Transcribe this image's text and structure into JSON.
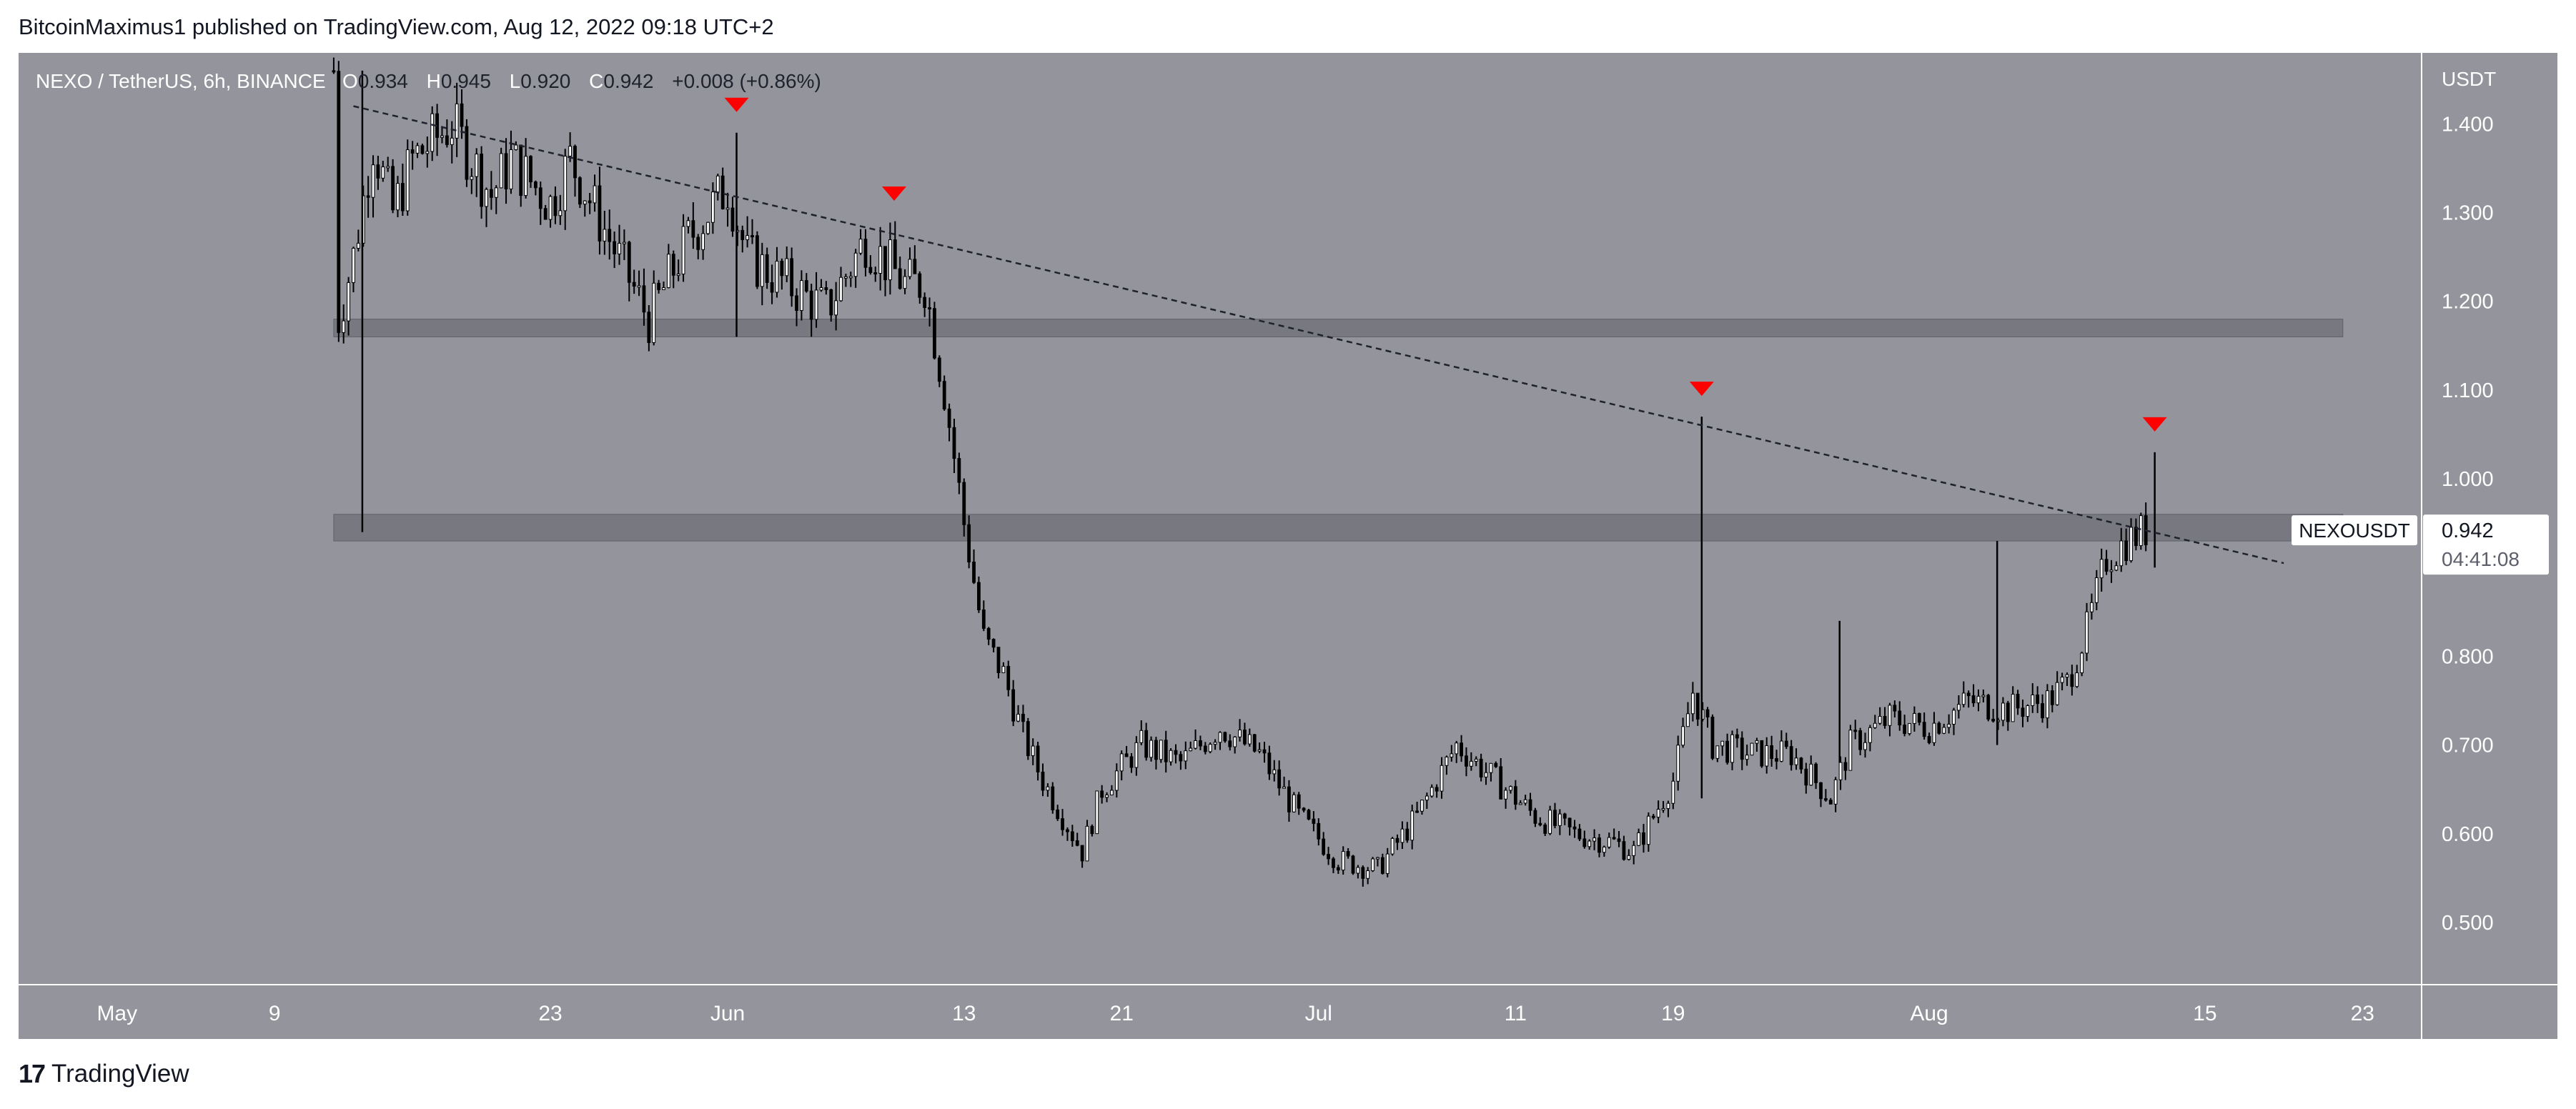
{
  "header": {
    "text": "BitcoinMaximus1 published on TradingView.com, Aug 12, 2022 09:18 UTC+2"
  },
  "legend": {
    "symbol": "NEXO / TetherUS, 6h, BINANCE",
    "o_label": "O",
    "o_value": "0.934",
    "h_label": "H",
    "h_value": "0.945",
    "l_label": "L",
    "l_value": "0.920",
    "c_label": "C",
    "c_value": "0.942",
    "change": "+0.008 (+0.86%)"
  },
  "price_axis": {
    "unit": "USDT"
  },
  "price_tag": {
    "symbol": "NEXOUSDT",
    "price": "0.942",
    "countdown": "04:41:08"
  },
  "footer": {
    "logo": "17",
    "brand": "TradingView"
  },
  "colors": {
    "background": "#93949c",
    "candle_up": "#ffffff",
    "candle_down": "#000000",
    "marker": "#ff0000",
    "zone": "#6f7077",
    "axis_text": "#ffffff"
  },
  "chart_data": {
    "type": "candlestick",
    "title": "NEXO / TetherUS, 6h, BINANCE",
    "ylabel": "USDT",
    "ylim": [
      0.43,
      1.48
    ],
    "y_ticks": [
      0.5,
      0.6,
      0.7,
      0.8,
      1.0,
      1.1,
      1.2,
      1.3,
      1.4
    ],
    "y_tick_labels": [
      "0.500",
      "0.600",
      "0.700",
      "0.800",
      "1.000",
      "1.100",
      "1.200",
      "1.300",
      "1.400"
    ],
    "x_range": [
      "2022-04-26",
      "2022-08-26"
    ],
    "x_ticks": [
      {
        "date": "2022-05-01",
        "label": "May"
      },
      {
        "date": "2022-05-09",
        "label": "9"
      },
      {
        "date": "2022-05-23",
        "label": "23"
      },
      {
        "date": "2022-06-01",
        "label": "Jun"
      },
      {
        "date": "2022-06-13",
        "label": "13"
      },
      {
        "date": "2022-06-21",
        "label": "21"
      },
      {
        "date": "2022-07-01",
        "label": "Jul"
      },
      {
        "date": "2022-07-11",
        "label": "11"
      },
      {
        "date": "2022-07-19",
        "label": "19"
      },
      {
        "date": "2022-08-01",
        "label": "Aug"
      },
      {
        "date": "2022-08-15",
        "label": "15"
      },
      {
        "date": "2022-08-23",
        "label": "23"
      }
    ],
    "price_path": [
      {
        "date": "2022-05-12",
        "close": 1.46
      },
      {
        "date": "2022-05-12",
        "close": 1.18
      },
      {
        "date": "2022-05-13",
        "close": 1.25
      },
      {
        "date": "2022-05-14",
        "close": 1.38
      },
      {
        "date": "2022-05-15",
        "close": 1.3
      },
      {
        "date": "2022-05-16",
        "close": 1.36
      },
      {
        "date": "2022-05-18",
        "close": 1.4
      },
      {
        "date": "2022-05-20",
        "close": 1.32
      },
      {
        "date": "2022-05-21",
        "close": 1.36
      },
      {
        "date": "2022-05-23",
        "close": 1.31
      },
      {
        "date": "2022-05-24",
        "close": 1.36
      },
      {
        "date": "2022-05-26",
        "close": 1.27
      },
      {
        "date": "2022-05-28",
        "close": 1.18
      },
      {
        "date": "2022-05-30",
        "close": 1.27
      },
      {
        "date": "2022-06-01",
        "close": 1.33
      },
      {
        "date": "2022-06-02",
        "close": 1.25
      },
      {
        "date": "2022-06-04",
        "close": 1.22
      },
      {
        "date": "2022-06-06",
        "close": 1.19
      },
      {
        "date": "2022-06-08",
        "close": 1.27
      },
      {
        "date": "2022-06-10",
        "close": 1.22
      },
      {
        "date": "2022-06-11",
        "close": 1.22
      },
      {
        "date": "2022-06-12",
        "close": 1.1
      },
      {
        "date": "2022-06-13",
        "close": 0.95
      },
      {
        "date": "2022-06-14",
        "close": 0.82
      },
      {
        "date": "2022-06-15",
        "close": 0.78
      },
      {
        "date": "2022-06-16",
        "close": 0.71
      },
      {
        "date": "2022-06-17",
        "close": 0.66
      },
      {
        "date": "2022-06-18",
        "close": 0.62
      },
      {
        "date": "2022-06-19",
        "close": 0.58
      },
      {
        "date": "2022-06-20",
        "close": 0.65
      },
      {
        "date": "2022-06-22",
        "close": 0.7
      },
      {
        "date": "2022-06-24",
        "close": 0.68
      },
      {
        "date": "2022-06-26",
        "close": 0.72
      },
      {
        "date": "2022-06-28",
        "close": 0.69
      },
      {
        "date": "2022-06-30",
        "close": 0.62
      },
      {
        "date": "2022-07-02",
        "close": 0.57
      },
      {
        "date": "2022-07-04",
        "close": 0.56
      },
      {
        "date": "2022-07-06",
        "close": 0.62
      },
      {
        "date": "2022-07-08",
        "close": 0.7
      },
      {
        "date": "2022-07-10",
        "close": 0.66
      },
      {
        "date": "2022-07-12",
        "close": 0.62
      },
      {
        "date": "2022-07-14",
        "close": 0.6
      },
      {
        "date": "2022-07-16",
        "close": 0.59
      },
      {
        "date": "2022-07-17",
        "close": 0.58
      },
      {
        "date": "2022-07-19",
        "close": 0.66
      },
      {
        "date": "2022-07-20",
        "close": 0.76
      },
      {
        "date": "2022-07-21",
        "close": 0.7
      },
      {
        "date": "2022-07-23",
        "close": 0.69
      },
      {
        "date": "2022-07-25",
        "close": 0.69
      },
      {
        "date": "2022-07-27",
        "close": 0.64
      },
      {
        "date": "2022-07-28",
        "close": 0.7
      },
      {
        "date": "2022-07-30",
        "close": 0.73
      },
      {
        "date": "2022-08-01",
        "close": 0.72
      },
      {
        "date": "2022-08-03",
        "close": 0.75
      },
      {
        "date": "2022-08-05",
        "close": 0.74
      },
      {
        "date": "2022-08-07",
        "close": 0.75
      },
      {
        "date": "2022-08-08",
        "close": 0.77
      },
      {
        "date": "2022-08-09",
        "close": 0.83
      },
      {
        "date": "2022-08-10",
        "close": 0.91
      },
      {
        "date": "2022-08-11",
        "close": 0.93
      },
      {
        "date": "2022-08-12",
        "close": 0.942
      }
    ],
    "spikes": [
      {
        "date": "2022-05-12",
        "high": 1.46,
        "low": 0.94
      },
      {
        "date": "2022-05-31",
        "high": 1.39,
        "low": 1.16
      },
      {
        "date": "2022-07-19",
        "high": 1.07,
        "low": 0.64
      },
      {
        "date": "2022-07-26",
        "high": 0.84,
        "low": 0.68
      },
      {
        "date": "2022-08-03",
        "high": 0.93,
        "low": 0.7
      },
      {
        "date": "2022-08-11",
        "high": 1.03,
        "low": 0.9
      }
    ],
    "support_zones": [
      {
        "low": 1.16,
        "high": 1.18,
        "from": "2022-05-12",
        "to": "2022-08-22"
      },
      {
        "low": 0.93,
        "high": 0.96,
        "from": "2022-05-12",
        "to": "2022-08-22"
      }
    ],
    "trendline": {
      "start": {
        "date": "2022-05-13",
        "price": 1.42
      },
      "end": {
        "date": "2022-08-19",
        "price": 0.905
      },
      "style": "dashed"
    },
    "resistance_markers": [
      {
        "date": "2022-05-31",
        "price": 1.39
      },
      {
        "date": "2022-06-08",
        "price": 1.29
      },
      {
        "date": "2022-07-19",
        "price": 1.07
      },
      {
        "date": "2022-08-11",
        "price": 1.03
      }
    ],
    "last_price": 0.942
  }
}
